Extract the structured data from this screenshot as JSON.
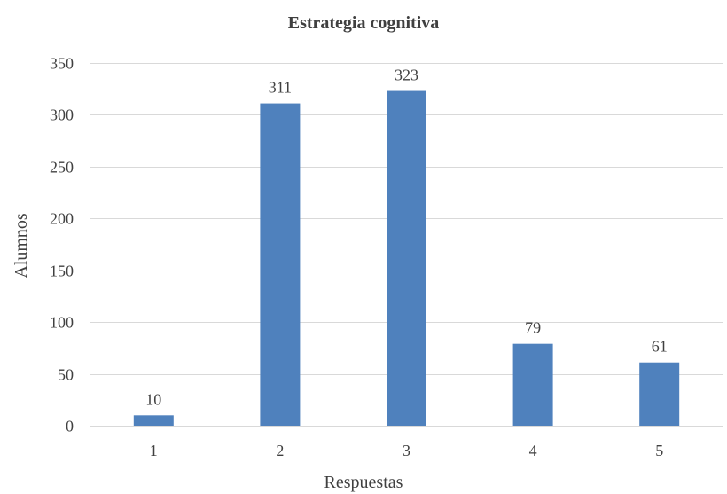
{
  "chart_data": {
    "type": "bar",
    "title": "Estrategia cognitiva",
    "xlabel": "Respuestas",
    "ylabel": "Alumnos",
    "categories": [
      "1",
      "2",
      "3",
      "4",
      "5"
    ],
    "values": [
      10,
      311,
      323,
      79,
      61
    ],
    "ylim": [
      0,
      350
    ],
    "yticks": [
      0,
      50,
      100,
      150,
      200,
      250,
      300,
      350
    ],
    "grid": true,
    "legend": "none",
    "bar_color": "#4f81bd"
  }
}
